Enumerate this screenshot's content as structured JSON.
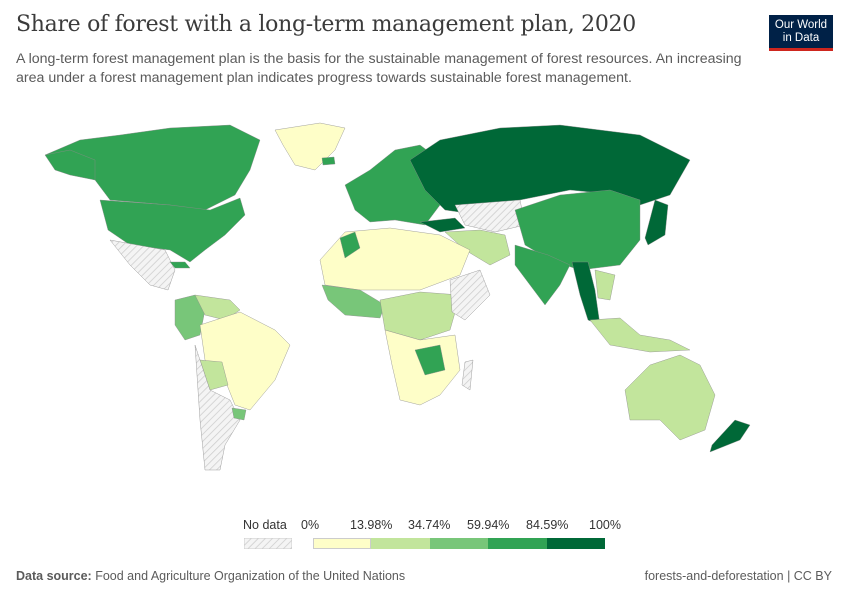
{
  "header": {
    "title": "Share of forest with a long-term management plan, 2020",
    "subtitle": "A long-term forest management plan is the basis for the sustainable management of forest resources. An increasing area under a forest management plan indicates progress towards sustainable forest management.",
    "logo": "Our World in Data"
  },
  "legend": {
    "no_data": "No data",
    "ticks": [
      "0%",
      "13.98%",
      "34.74%",
      "59.94%",
      "84.59%",
      "100%"
    ],
    "colors": [
      "#fefec8",
      "#c2e59c",
      "#78c679",
      "#31a354",
      "#006837"
    ]
  },
  "footer": {
    "source_label": "Data source:",
    "source": "Food and Agriculture Organization of the United Nations",
    "right": "forests-and-deforestation | CC BY"
  }
}
